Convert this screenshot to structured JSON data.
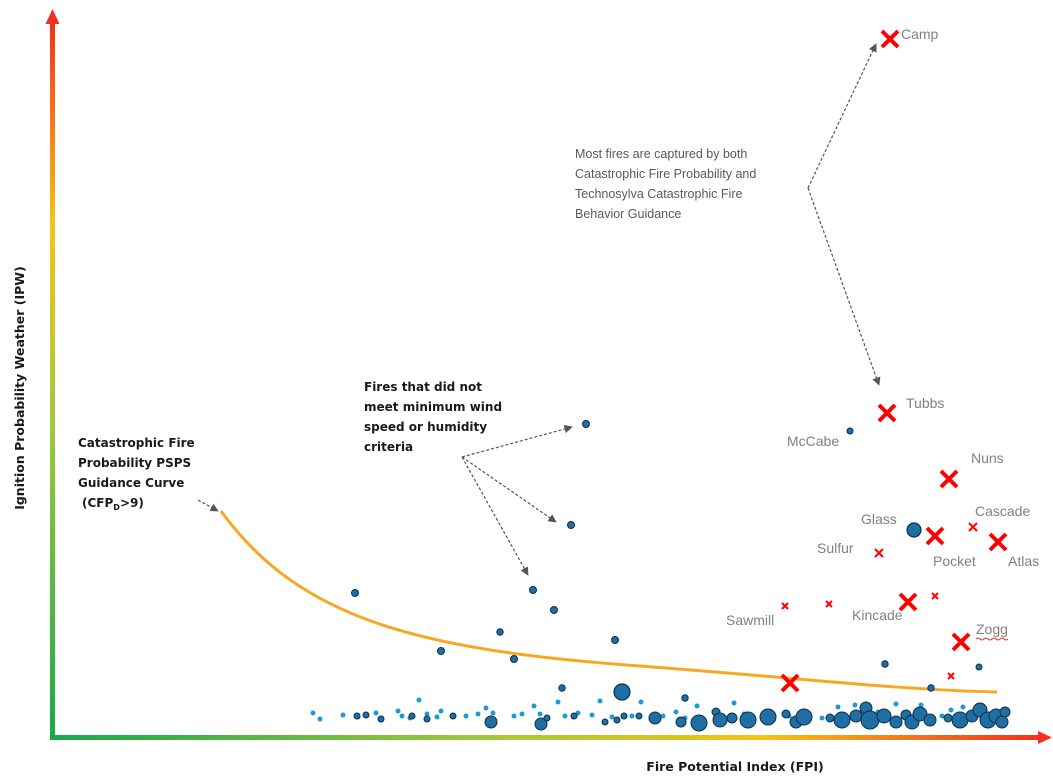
{
  "chart_data": {
    "type": "scatter",
    "xlabel": "Fire Potential Index (FPI)",
    "ylabel": "Ignition Probability Weather (IPW)",
    "curve": {
      "label_lines": [
        "Catastrophic Fire",
        "Probability PSPS",
        "Guidance Curve"
      ],
      "label_tail": {
        "open": "(CFP",
        "sub": "D",
        "close": ">9)"
      }
    },
    "annotations": {
      "captured": [
        "Most fires are captured by both",
        "Catastrophic Fire Probability and",
        "Technosylva Catastrophic Fire",
        "Behavior Guidance"
      ],
      "not_met": [
        "Fires that did not",
        "meet minimum wind",
        "speed or humidity",
        "criteria"
      ]
    },
    "named_fires": [
      "Camp",
      "Tubbs",
      "McCabe",
      "Nuns",
      "Cascade",
      "Glass",
      "Sulfur",
      "Pocket",
      "Atlas",
      "Sawmill",
      "Kincade",
      "Zogg"
    ],
    "colors": {
      "fire_marker": "#ff0000",
      "dot_dark": "#1f6fa5",
      "dot_light": "#1a9ad6",
      "curve": "#f7a823",
      "label": "#808080"
    }
  }
}
